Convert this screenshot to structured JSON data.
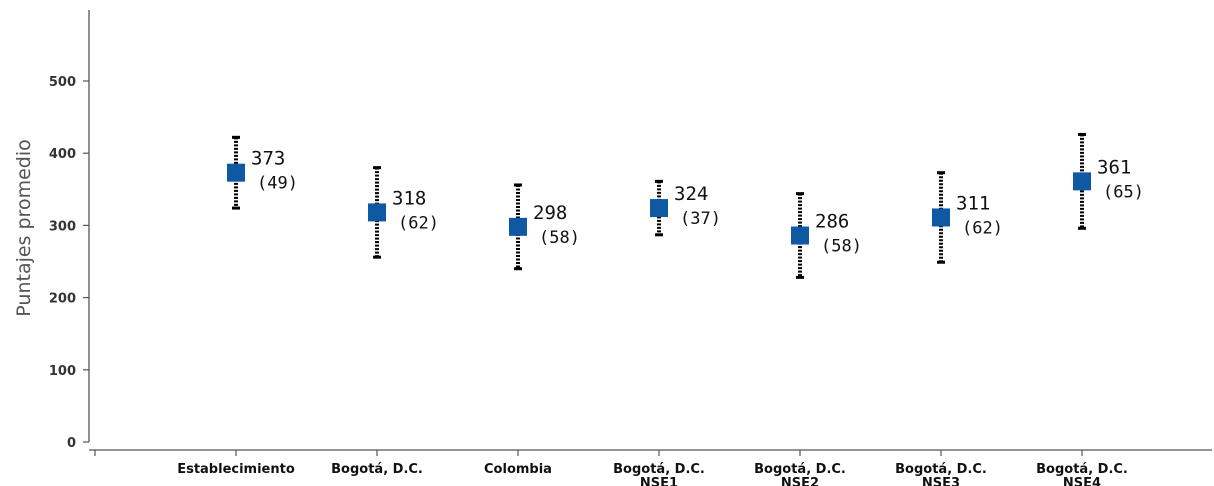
{
  "chart_data": {
    "type": "scatter",
    "ylabel": "Puntajes promedio",
    "xlabel": "",
    "ylim": [
      0,
      500
    ],
    "yticks": [
      0,
      100,
      200,
      300,
      400,
      500
    ],
    "grid": false,
    "marker_color": "#0e59a1",
    "categories": [
      [
        "Establecimiento"
      ],
      [
        "Bogotá, D.C."
      ],
      [
        "Colombia"
      ],
      [
        "Bogotá, D.C.",
        "NSE1"
      ],
      [
        "Bogotá, D.C.",
        "NSE2"
      ],
      [
        "Bogotá, D.C.",
        "NSE3"
      ],
      [
        "Bogotá, D.C.",
        "NSE4"
      ]
    ],
    "points": [
      {
        "mean": 373,
        "sd": 49,
        "mean_label": "373",
        "sd_label": "(49)"
      },
      {
        "mean": 318,
        "sd": 62,
        "mean_label": "318",
        "sd_label": "(62)"
      },
      {
        "mean": 298,
        "sd": 58,
        "mean_label": "298",
        "sd_label": "(58)"
      },
      {
        "mean": 324,
        "sd": 37,
        "mean_label": "324",
        "sd_label": "(37)"
      },
      {
        "mean": 286,
        "sd": 58,
        "mean_label": "286",
        "sd_label": "(58)"
      },
      {
        "mean": 311,
        "sd": 62,
        "mean_label": "311",
        "sd_label": "(62)"
      },
      {
        "mean": 361,
        "sd": 65,
        "mean_label": "361",
        "sd_label": "(65)"
      }
    ]
  }
}
